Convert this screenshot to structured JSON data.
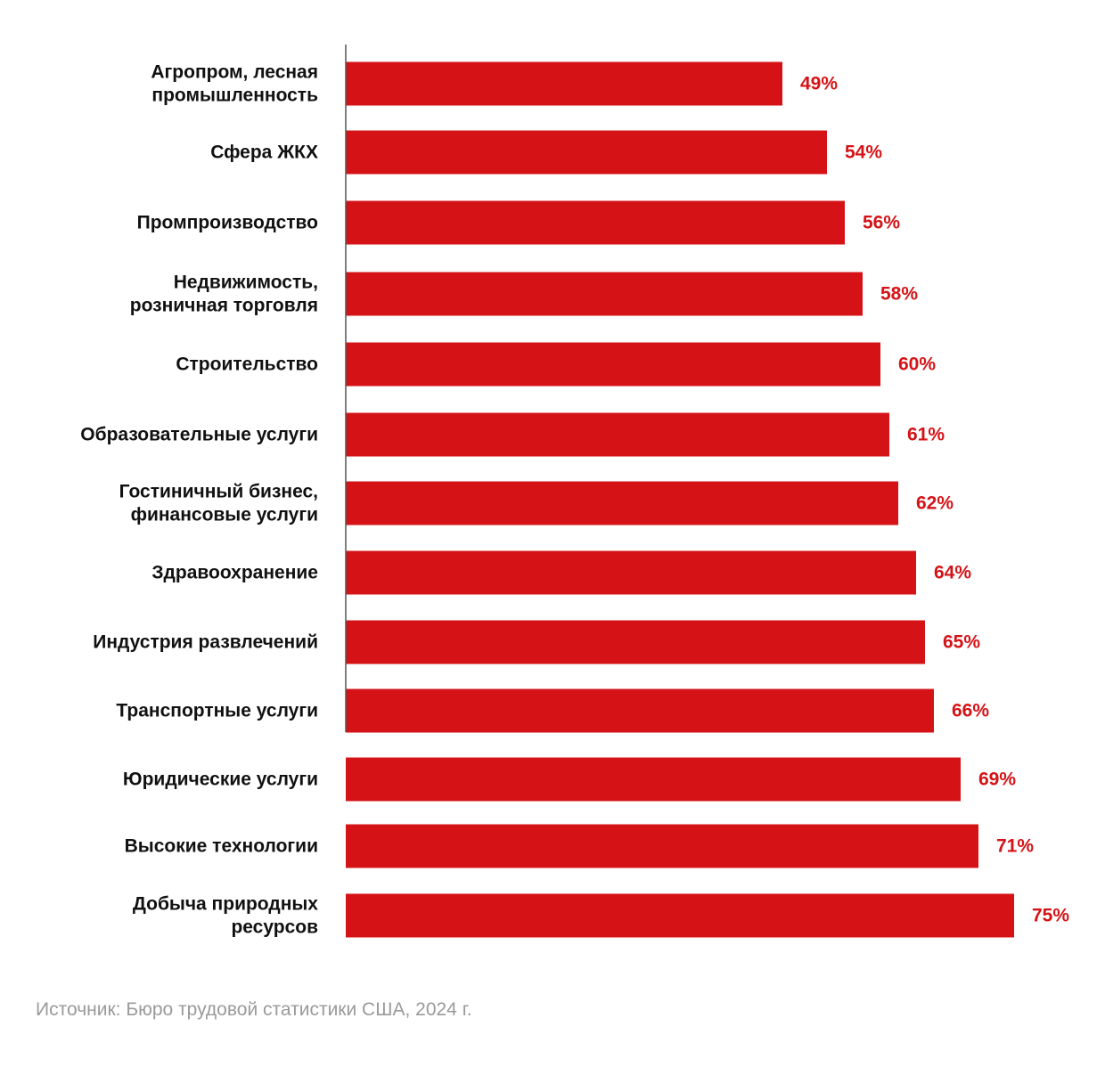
{
  "chart_data": {
    "type": "bar",
    "orientation": "horizontal",
    "categories": [
      [
        "Агропром, лесная",
        "промышленность"
      ],
      [
        "Сфера ЖКХ"
      ],
      [
        "Промпроизводство"
      ],
      [
        "Недвижимость,",
        "розничная торговля"
      ],
      [
        "Строительство"
      ],
      [
        "Образовательные услуги"
      ],
      [
        "Гостиничный бизнес,",
        "финансовые услуги"
      ],
      [
        "Здравоохранение"
      ],
      [
        "Индустрия развлечений"
      ],
      [
        "Транспортные услуги"
      ],
      [
        "Юридические услуги"
      ],
      [
        "Высокие технологии"
      ],
      [
        "Добыча природных",
        "ресурсов"
      ]
    ],
    "values": [
      49,
      54,
      56,
      58,
      60,
      61,
      62,
      64,
      65,
      66,
      69,
      71,
      75
    ],
    "value_labels": [
      "49%",
      "54%",
      "56%",
      "58%",
      "60%",
      "61%",
      "62%",
      "64%",
      "65%",
      "66%",
      "69%",
      "71%",
      "75%"
    ],
    "unit": "%",
    "xlim": [
      0,
      75
    ],
    "grid": false,
    "legend": "none",
    "bar_color": "#d51317",
    "value_label_color": "#d51317",
    "axis_color": "#555555"
  },
  "source_note": "Источник: Бюро трудовой статистики США, 2024 г."
}
